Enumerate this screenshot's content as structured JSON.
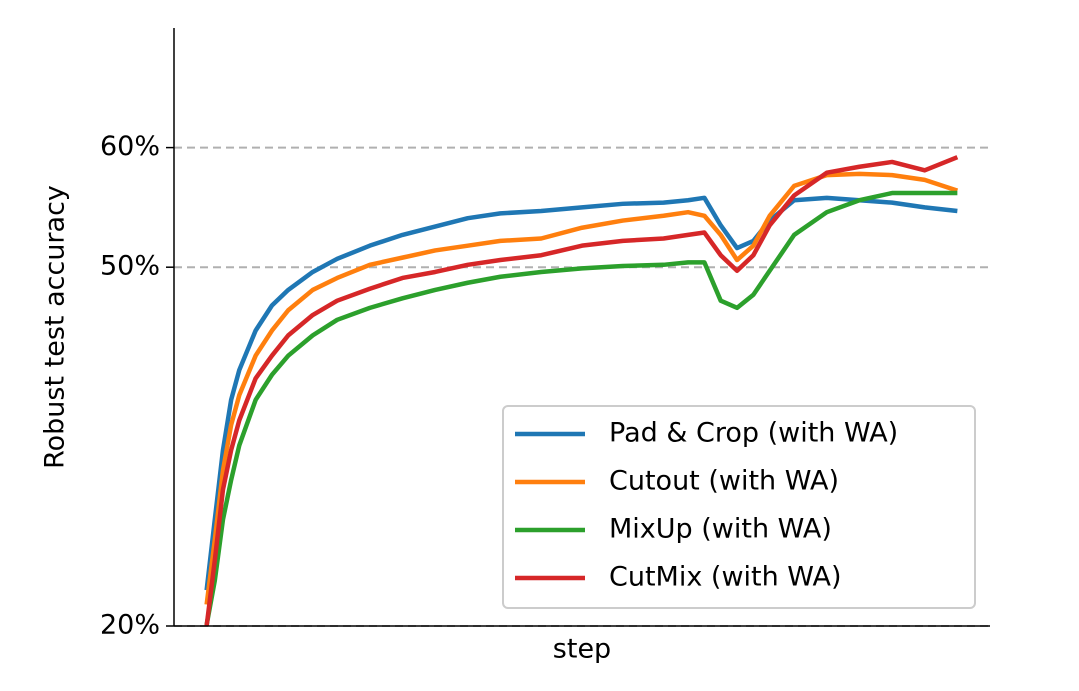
{
  "chart_data": {
    "type": "line",
    "x_label": "step",
    "y_label": "Robust test accuracy",
    "x": [
      4,
      5,
      6,
      7,
      8,
      10,
      12,
      14,
      17,
      20,
      24,
      28,
      32,
      36,
      40,
      45,
      50,
      55,
      60,
      63,
      65,
      67,
      69,
      71,
      73,
      76,
      80,
      84,
      88,
      92,
      96
    ],
    "xlim": [
      0,
      100
    ],
    "ylim": [
      20,
      70
    ],
    "yticks": [
      {
        "value": 20,
        "label": "20%"
      },
      {
        "value": 50,
        "label": "50%"
      },
      {
        "value": 60,
        "label": "60%"
      }
    ],
    "grid": true,
    "legend": "lower right",
    "series": [
      {
        "name": "Pad & Crop (with WA)",
        "color": "#1f77b4",
        "values": [
          23.0,
          28.9,
          34.7,
          38.9,
          41.4,
          44.7,
          46.8,
          48.1,
          49.6,
          50.7,
          51.8,
          52.7,
          53.4,
          54.1,
          54.5,
          54.7,
          55.0,
          55.3,
          55.4,
          55.6,
          55.8,
          53.5,
          51.6,
          52.2,
          53.9,
          55.6,
          55.8,
          55.6,
          55.4,
          55.0,
          54.7
        ]
      },
      {
        "name": "Cutout (with WA)",
        "color": "#ff7f0e",
        "values": [
          21.8,
          27.2,
          33.0,
          36.8,
          39.3,
          42.6,
          44.7,
          46.4,
          48.1,
          49.1,
          50.2,
          50.8,
          51.4,
          51.8,
          52.2,
          52.4,
          53.3,
          53.9,
          54.3,
          54.6,
          54.3,
          52.7,
          50.6,
          51.8,
          54.3,
          56.8,
          57.7,
          57.8,
          57.7,
          57.3,
          56.4
        ]
      },
      {
        "name": "MixUp (with WA)",
        "color": "#2ca02c",
        "values": [
          20.1,
          23.8,
          28.9,
          32.2,
          35.1,
          38.9,
          41.0,
          42.6,
          44.3,
          45.6,
          46.6,
          47.4,
          48.1,
          48.7,
          49.2,
          49.6,
          49.9,
          50.1,
          50.2,
          50.4,
          50.4,
          47.2,
          46.6,
          47.7,
          49.7,
          52.7,
          54.6,
          55.6,
          56.2,
          56.2,
          56.2
        ]
      },
      {
        "name": "CutMix (with WA)",
        "color": "#d62728",
        "values": [
          20.0,
          25.5,
          31.4,
          34.7,
          37.2,
          40.7,
          42.6,
          44.3,
          46.0,
          47.2,
          48.2,
          49.1,
          49.6,
          50.2,
          50.6,
          51.0,
          51.8,
          52.2,
          52.4,
          52.7,
          52.9,
          51.0,
          49.7,
          51.0,
          53.5,
          56.0,
          57.9,
          58.4,
          58.8,
          58.1,
          59.2
        ]
      }
    ]
  }
}
